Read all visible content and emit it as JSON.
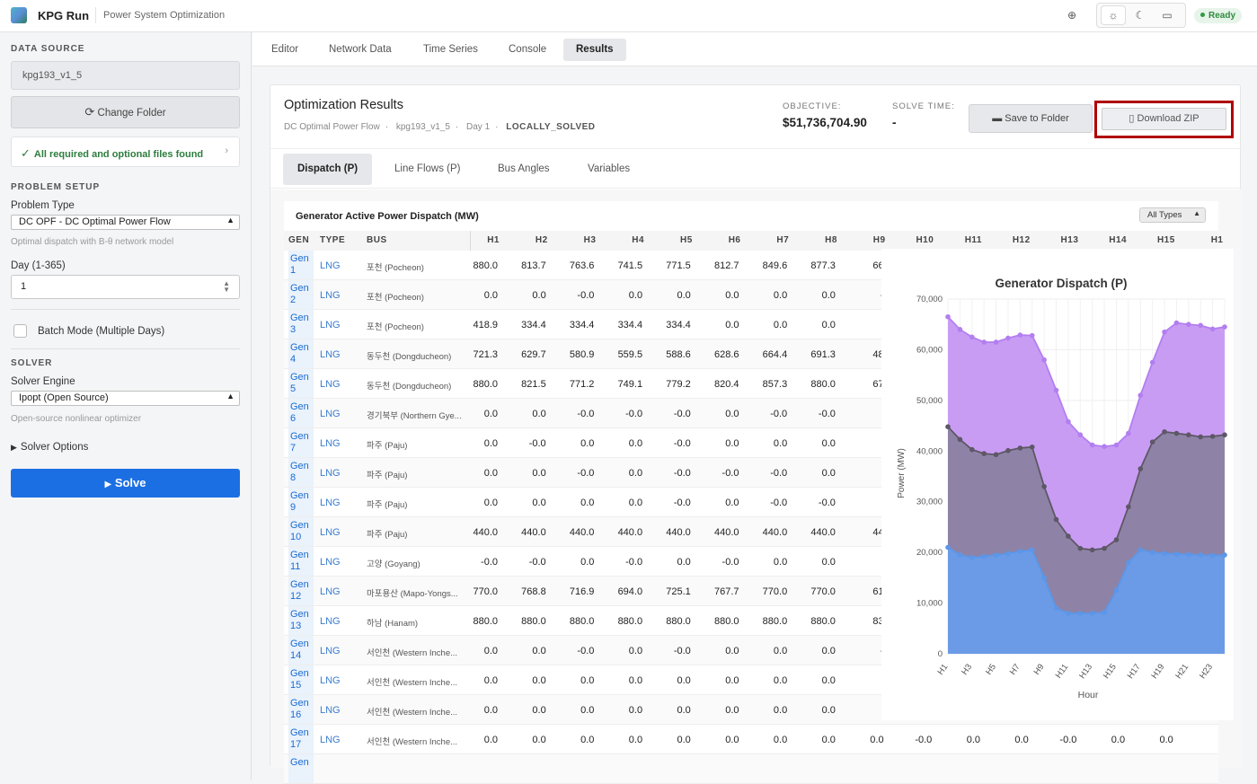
{
  "header": {
    "app_title": "KPG Run",
    "app_subtitle": "Power System Optimization",
    "theme_icons": [
      "sun-icon",
      "moon-icon",
      "monitor-icon"
    ],
    "status": "Ready"
  },
  "sidebar": {
    "data_source_title": "DATA SOURCE",
    "folder_name": "kpg193_v1_5",
    "change_folder_label": "Change Folder",
    "files_status": "All required and optional files found",
    "problem_setup_title": "PROBLEM SETUP",
    "problem_type_label": "Problem Type",
    "problem_type_value": "DC OPF - DC Optimal Power Flow",
    "problem_type_hint": "Optimal dispatch with B-θ network model",
    "day_label": "Day (1-365)",
    "day_value": "1",
    "batch_mode_label": "Batch Mode (Multiple Days)",
    "solver_title": "SOLVER",
    "solver_engine_label": "Solver Engine",
    "solver_engine_value": "Ipopt (Open Source)",
    "solver_engine_hint": "Open-source nonlinear optimizer",
    "solver_options_label": "Solver Options",
    "solve_label": "Solve"
  },
  "main_tabs": [
    "Editor",
    "Network Data",
    "Time Series",
    "Console",
    "Results"
  ],
  "results": {
    "title": "Optimization Results",
    "meta": [
      "DC Optimal Power Flow",
      "kpg193_v1_5",
      "Day 1"
    ],
    "status": "LOCALLY_SOLVED",
    "objective_label": "OBJECTIVE:",
    "objective_value": "$51,736,704.90",
    "solve_time_label": "SOLVE TIME:",
    "solve_time_value": "-",
    "save_label": "Save to Folder",
    "download_label": "Download ZIP"
  },
  "sub_tabs": [
    "Dispatch (P)",
    "Line Flows (P)",
    "Bus Angles",
    "Variables"
  ],
  "table": {
    "title": "Generator Active Power Dispatch (MW)",
    "filter": "All Types",
    "columns": [
      "GEN",
      "TYPE",
      "BUS",
      "H1",
      "H2",
      "H3",
      "H4",
      "H5",
      "H6",
      "H7",
      "H8",
      "H9",
      "H10",
      "H11",
      "H12",
      "H13",
      "H14",
      "H15",
      "H1"
    ],
    "rows": [
      {
        "gen": "Gen 1",
        "type": "LNG",
        "bus": "포천 (Pocheon)",
        "v": [
          "880.0",
          "813.7",
          "763.6",
          "741.5",
          "771.5",
          "812.7",
          "849.6",
          "877.3",
          "66"
        ]
      },
      {
        "gen": "Gen 2",
        "type": "LNG",
        "bus": "포천 (Pocheon)",
        "v": [
          "0.0",
          "0.0",
          "-0.0",
          "0.0",
          "0.0",
          "0.0",
          "0.0",
          "0.0",
          "-"
        ]
      },
      {
        "gen": "Gen 3",
        "type": "LNG",
        "bus": "포천 (Pocheon)",
        "v": [
          "418.9",
          "334.4",
          "334.4",
          "334.4",
          "334.4",
          "0.0",
          "0.0",
          "0.0",
          ""
        ]
      },
      {
        "gen": "Gen 4",
        "type": "LNG",
        "bus": "동두천 (Dongducheon)",
        "v": [
          "721.3",
          "629.7",
          "580.9",
          "559.5",
          "588.6",
          "628.6",
          "664.4",
          "691.3",
          "48"
        ]
      },
      {
        "gen": "Gen 5",
        "type": "LNG",
        "bus": "동두천 (Dongducheon)",
        "v": [
          "880.0",
          "821.5",
          "771.2",
          "749.1",
          "779.2",
          "820.4",
          "857.3",
          "880.0",
          "67"
        ]
      },
      {
        "gen": "Gen 6",
        "type": "LNG",
        "bus": "경기북부 (Northern Gye...",
        "v": [
          "0.0",
          "0.0",
          "-0.0",
          "-0.0",
          "-0.0",
          "0.0",
          "-0.0",
          "-0.0",
          ""
        ]
      },
      {
        "gen": "Gen 7",
        "type": "LNG",
        "bus": "파주 (Paju)",
        "v": [
          "0.0",
          "-0.0",
          "0.0",
          "0.0",
          "-0.0",
          "0.0",
          "0.0",
          "0.0",
          ""
        ]
      },
      {
        "gen": "Gen 8",
        "type": "LNG",
        "bus": "파주 (Paju)",
        "v": [
          "0.0",
          "0.0",
          "-0.0",
          "0.0",
          "-0.0",
          "-0.0",
          "-0.0",
          "0.0",
          ""
        ]
      },
      {
        "gen": "Gen 9",
        "type": "LNG",
        "bus": "파주 (Paju)",
        "v": [
          "0.0",
          "0.0",
          "0.0",
          "0.0",
          "-0.0",
          "0.0",
          "-0.0",
          "-0.0",
          ""
        ]
      },
      {
        "gen": "Gen 10",
        "type": "LNG",
        "bus": "파주 (Paju)",
        "v": [
          "440.0",
          "440.0",
          "440.0",
          "440.0",
          "440.0",
          "440.0",
          "440.0",
          "440.0",
          "44"
        ]
      },
      {
        "gen": "Gen 11",
        "type": "LNG",
        "bus": "고양 (Goyang)",
        "v": [
          "-0.0",
          "-0.0",
          "0.0",
          "-0.0",
          "0.0",
          "-0.0",
          "0.0",
          "0.0",
          ""
        ]
      },
      {
        "gen": "Gen 12",
        "type": "LNG",
        "bus": "마포용산 (Mapo-Yongs...",
        "v": [
          "770.0",
          "768.8",
          "716.9",
          "694.0",
          "725.1",
          "767.7",
          "770.0",
          "770.0",
          "61"
        ]
      },
      {
        "gen": "Gen 13",
        "type": "LNG",
        "bus": "하남 (Hanam)",
        "v": [
          "880.0",
          "880.0",
          "880.0",
          "880.0",
          "880.0",
          "880.0",
          "880.0",
          "880.0",
          "83"
        ]
      },
      {
        "gen": "Gen 14",
        "type": "LNG",
        "bus": "서인천 (Western Inche...",
        "v": [
          "0.0",
          "0.0",
          "-0.0",
          "0.0",
          "-0.0",
          "0.0",
          "0.0",
          "0.0",
          "-"
        ]
      },
      {
        "gen": "Gen 15",
        "type": "LNG",
        "bus": "서인천 (Western Inche...",
        "v": [
          "0.0",
          "0.0",
          "0.0",
          "0.0",
          "0.0",
          "0.0",
          "0.0",
          "0.0",
          ""
        ]
      },
      {
        "gen": "Gen 16",
        "type": "LNG",
        "bus": "서인천 (Western Inche...",
        "v": [
          "0.0",
          "0.0",
          "0.0",
          "0.0",
          "0.0",
          "0.0",
          "0.0",
          "0.0",
          ""
        ]
      },
      {
        "gen": "Gen 17",
        "type": "LNG",
        "bus": "서인천 (Western Inche...",
        "v": [
          "0.0",
          "0.0",
          "0.0",
          "0.0",
          "0.0",
          "0.0",
          "0.0",
          "0.0",
          "0.0",
          "-0.0",
          "0.0",
          "0.0",
          "-0.0",
          "0.0",
          "0.0"
        ]
      }
    ],
    "partial_row_gen": "Gen"
  },
  "chart_data": {
    "type": "area",
    "title": "Generator Dispatch (P)",
    "xlabel": "Hour",
    "ylabel": "Power (MW)",
    "ylim": [
      0,
      70000
    ],
    "yticks": [
      "0",
      "10,000",
      "20,000",
      "30,000",
      "40,000",
      "50,000",
      "60,000",
      "70,000"
    ],
    "x": [
      "H1",
      "H2",
      "H3",
      "H4",
      "H5",
      "H6",
      "H7",
      "H8",
      "H9",
      "H10",
      "H11",
      "H12",
      "H13",
      "H14",
      "H15",
      "H16",
      "H17",
      "H18",
      "H19",
      "H20",
      "H21",
      "H22",
      "H23",
      "H24"
    ],
    "xtick_labels": [
      "H1",
      "H3",
      "H5",
      "H7",
      "H9",
      "H11",
      "H13",
      "H15",
      "H17",
      "H19",
      "H21",
      "H23"
    ],
    "stacked": true,
    "series": [
      {
        "color": "#6b9be6",
        "values": [
          21000,
          19500,
          19000,
          19200,
          19500,
          19800,
          20200,
          20500,
          15000,
          9000,
          8000,
          8000,
          8000,
          8200,
          12500,
          18000,
          20500,
          20000,
          19800,
          19700,
          19600,
          19500,
          19400,
          19500
        ]
      },
      {
        "color": "#8e83a6",
        "values": [
          44800,
          42300,
          40300,
          39500,
          39300,
          40100,
          40600,
          40800,
          33000,
          26500,
          23200,
          20800,
          20500,
          20800,
          22500,
          29000,
          36500,
          41800,
          43800,
          43500,
          43200,
          42800,
          42900,
          43200
        ]
      },
      {
        "color": "#c99cf4",
        "values": [
          66500,
          64000,
          62500,
          61500,
          61500,
          62300,
          62900,
          62800,
          58000,
          52000,
          45800,
          43200,
          41200,
          40900,
          41200,
          43500,
          51000,
          57500,
          63500,
          65300,
          65000,
          64800,
          64100,
          64500
        ]
      }
    ]
  }
}
